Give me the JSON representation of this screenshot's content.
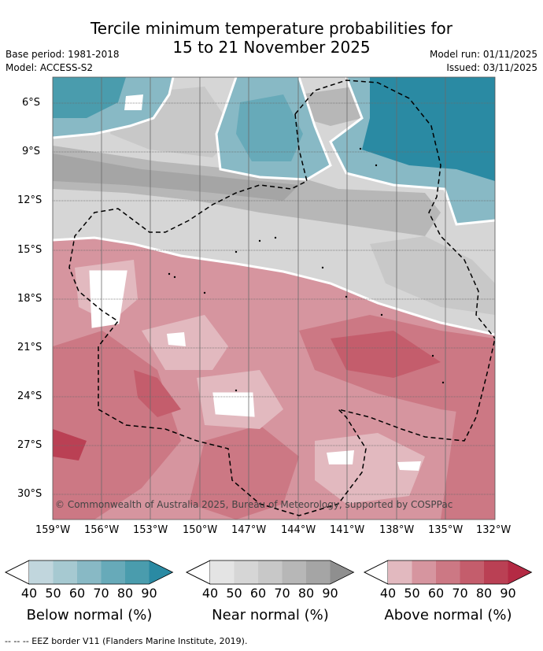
{
  "title": {
    "line1": "Tercile minimum temperature probabilities for",
    "line2": "15 to 21 November 2025"
  },
  "meta": {
    "base_period": "Base period: 1981-2018",
    "model": "Model: ACCESS-S2",
    "model_run": "Model run: 01/11/2025",
    "issued": "Issued: 03/11/2025"
  },
  "map": {
    "lat_labels": [
      "6°S",
      "9°S",
      "12°S",
      "15°S",
      "18°S",
      "21°S",
      "24°S",
      "27°S",
      "30°S"
    ],
    "lon_labels": [
      "159°W",
      "156°W",
      "153°W",
      "150°W",
      "147°W",
      "144°W",
      "141°W",
      "138°W",
      "135°W",
      "132°W"
    ],
    "copyright": "© Commonwealth of Australia 2025, Bureau of Meteorology, supported by COSPPac"
  },
  "colorbars": [
    {
      "title": "Below normal (%)",
      "ticks": [
        "40",
        "50",
        "60",
        "70",
        "80",
        "90"
      ],
      "colors": [
        "#ffffff",
        "#c1d6dd",
        "#a6c9d1",
        "#88b9c5",
        "#67aab9",
        "#4a9cad",
        "#2a8aa3"
      ]
    },
    {
      "title": "Near normal (%)",
      "ticks": [
        "40",
        "50",
        "60",
        "70",
        "80",
        "90"
      ],
      "colors": [
        "#ffffff",
        "#e4e4e4",
        "#d6d6d6",
        "#c8c8c8",
        "#b7b7b7",
        "#a5a5a5",
        "#8f8f8f"
      ]
    },
    {
      "title": "Above normal (%)",
      "ticks": [
        "40",
        "50",
        "60",
        "70",
        "80",
        "90"
      ],
      "colors": [
        "#ffffff",
        "#e2b9bf",
        "#d6959f",
        "#cc7884",
        "#c45d6c",
        "#ba4054",
        "#b42a44"
      ]
    }
  ],
  "footnote": "--  --  -- EEZ border V11 (Flanders Marine Institute, 2019)."
}
